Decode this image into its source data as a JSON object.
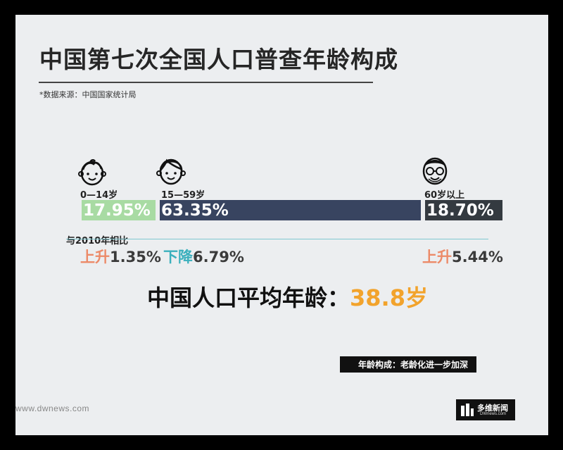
{
  "title": "中国第七次全国人口普查年龄构成",
  "source": "*数据来源：中国国家统计局",
  "compare_label": "与2010年相比",
  "colors": {
    "young": "#a8dba3",
    "working": "#384460",
    "elderly": "#343a40",
    "up": "#ec8a68",
    "down": "#3bb0bd",
    "accent": "#f2a32c"
  },
  "icons": [
    "child-face-icon",
    "adult-face-icon",
    "elderly-face-icon",
    "dwnews-logo-icon"
  ],
  "chart_data": {
    "type": "bar",
    "orientation": "horizontal-stacked",
    "categories": [
      "0—14岁",
      "15—59岁",
      "60岁以上"
    ],
    "values": [
      17.95,
      63.35,
      18.7
    ],
    "value_labels": [
      "17.95%",
      "63.35%",
      "18.70%"
    ],
    "changes_vs_2010": [
      {
        "direction": "上升",
        "value": "1.35%"
      },
      {
        "direction": "下降",
        "value": "6.79%"
      },
      {
        "direction": "上升",
        "value": "5.44%"
      }
    ],
    "unit": "%"
  },
  "average": {
    "label": "中国人口平均年龄：",
    "value": "38.8岁"
  },
  "tag": "年龄构成：老龄化进一步加深",
  "website": "www.dwnews.com",
  "brand": {
    "name": "多维新闻",
    "sub": "DWnews.com"
  }
}
